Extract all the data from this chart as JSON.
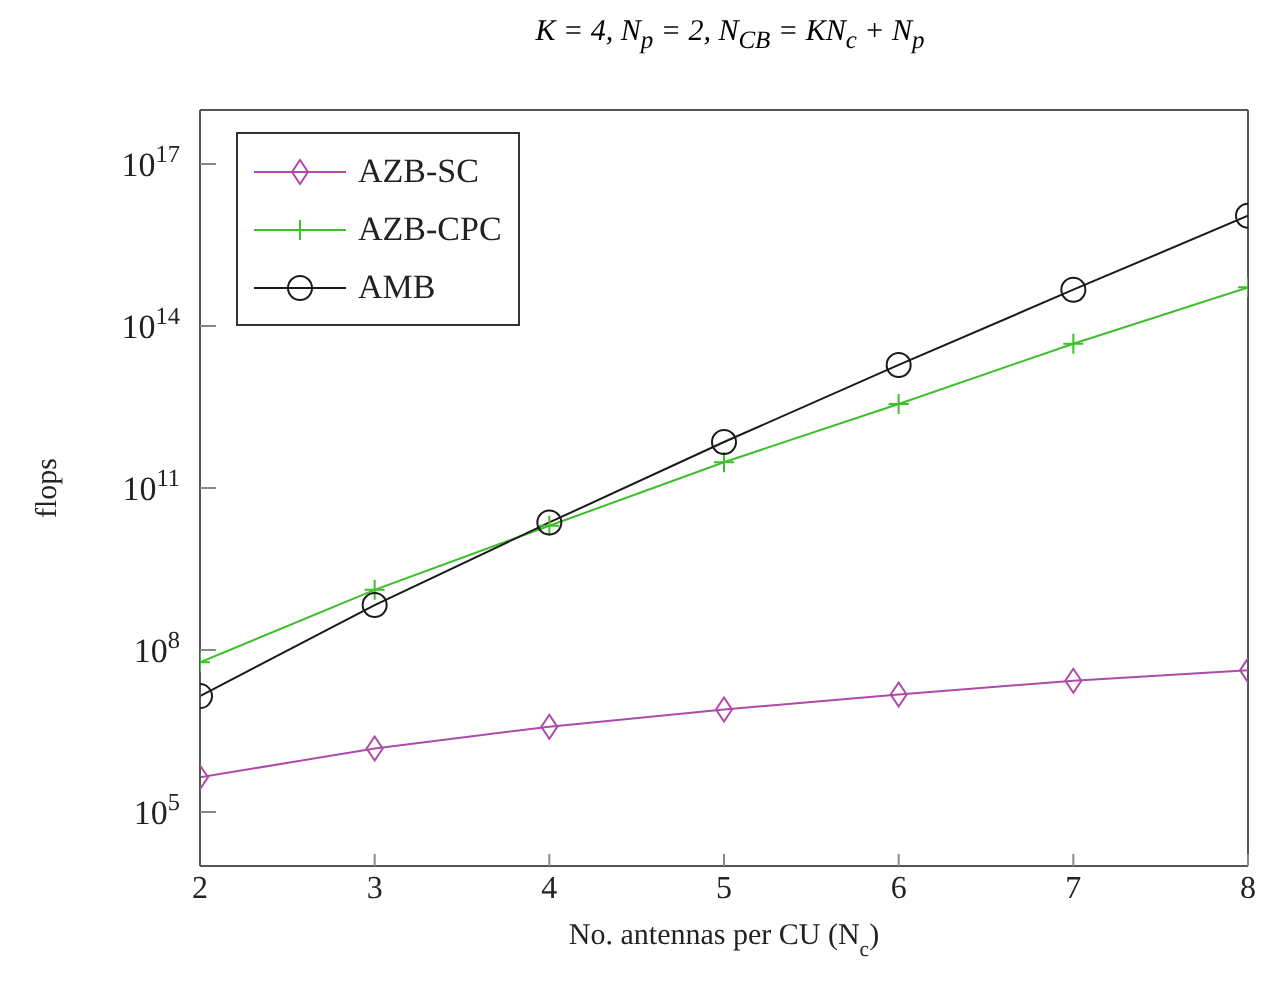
{
  "chart_data": {
    "type": "line",
    "title": "K = 4, N$_{p}$ = 2, N$_{CB}$ = KN$_{c}$ + N$_{p}$",
    "xlabel": "No. antennas per CU (N$_{c}$)",
    "ylabel": "flops",
    "x": [
      2,
      3,
      4,
      5,
      6,
      7,
      8
    ],
    "xlim": [
      2,
      8
    ],
    "xticks": [
      2,
      3,
      4,
      5,
      6,
      7,
      8
    ],
    "log": "y",
    "ylim": [
      10000.0,
      1e+18
    ],
    "yticks": [
      {
        "value": 100000.0,
        "label": "10$^{5}$"
      },
      {
        "value": 100000000.0,
        "label": "10$^{8}$"
      },
      {
        "value": 100000000000.0,
        "label": "10$^{11}$"
      },
      {
        "value": 100000000000000.0,
        "label": "10$^{14}$"
      },
      {
        "value": 1e+17,
        "label": "10$^{17}$"
      }
    ],
    "grid": false,
    "legend": "top left",
    "line_style": "solid",
    "series": [
      {
        "name": "AZB-SC",
        "color": "#b04aa8",
        "marker": "diamond",
        "values": [
          440000.0,
          1500000.0,
          3800000.0,
          7900000.0,
          15000000.0,
          27000000.0,
          42000000.0
        ]
      },
      {
        "name": "AZB-CPC",
        "color": "#3cbf2a",
        "marker": "cross",
        "values": [
          59000000.0,
          1300000000.0,
          20000000000.0,
          300000000000.0,
          3600000000000.0,
          47000000000000.0,
          520000000000000.0
        ]
      },
      {
        "name": "AMB",
        "color": "#1a1a1a",
        "marker": "circle",
        "values": [
          14000000.0,
          680000000.0,
          23000000000.0,
          710000000000.0,
          19000000000000.0,
          470000000000000.0,
          1.1e+16
        ]
      }
    ]
  }
}
